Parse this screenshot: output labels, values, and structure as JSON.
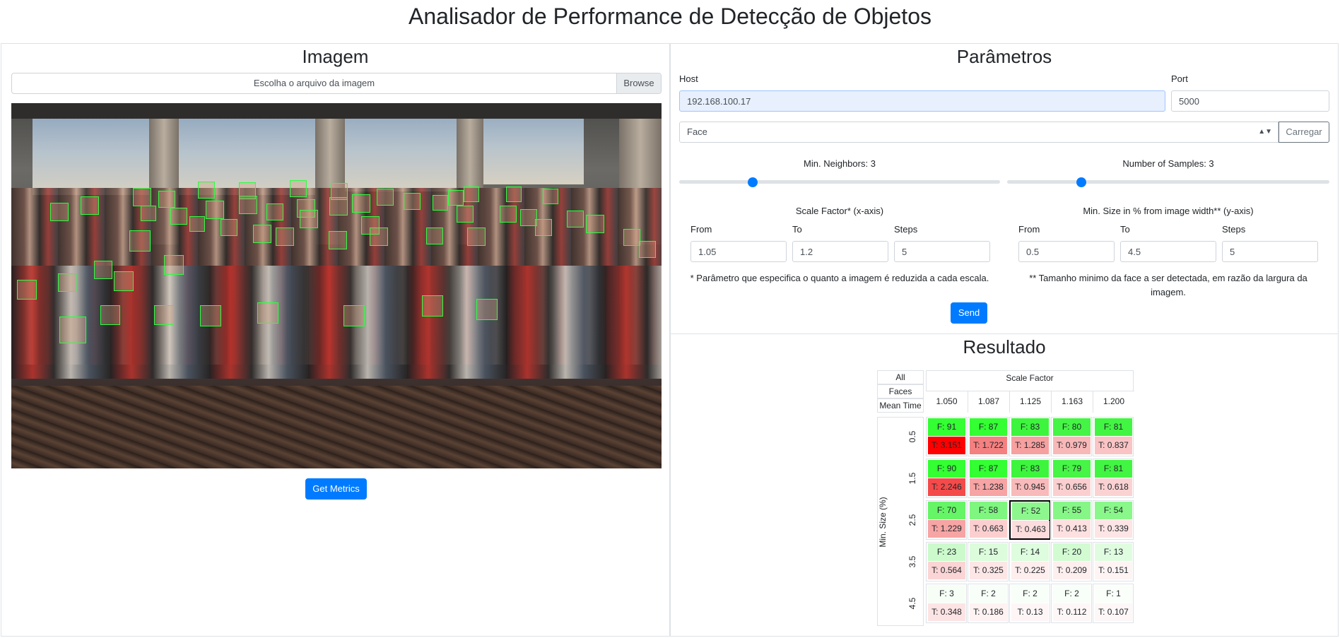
{
  "page_title": "Analisador de Performance de Detecção de Objetos",
  "image_panel": {
    "title": "Imagem",
    "file_placeholder": "Escolha o arquivo da imagem",
    "browse_label": "Browse",
    "get_metrics_label": "Get Metrics"
  },
  "params_panel": {
    "title": "Parâmetros",
    "host_label": "Host",
    "host_value": "192.168.100.17",
    "port_label": "Port",
    "port_value": "5000",
    "model_select": "Face",
    "load_label": "Carregar",
    "min_neighbors_label": "Min. Neighbors: 3",
    "min_neighbors_fraction": 0.23,
    "samples_label": "Number of Samples: 3",
    "samples_fraction": 0.23,
    "scale_title": "Scale Factor* (x-axis)",
    "size_title": "Min. Size in % from image width** (y-axis)",
    "from_label": "From",
    "to_label": "To",
    "steps_label": "Steps",
    "scale_from": "1.05",
    "scale_to": "1.2",
    "scale_steps": "5",
    "size_from": "0.5",
    "size_to": "4.5",
    "size_steps": "5",
    "scale_note": "* Parâmetro que especifica o quanto a imagem é reduzida a cada escala.",
    "size_note": "** Tamanho minimo da face a ser detectada, em razão da largura da imagem.",
    "send_label": "Send"
  },
  "result_panel": {
    "title": "Resultado",
    "legend": [
      "All",
      "Faces",
      "Mean Time"
    ],
    "x_axis_title": "Scale Factor",
    "y_axis_title": "Min. Size (%)",
    "columns": [
      "1.050",
      "1.087",
      "1.125",
      "1.163",
      "1.200"
    ],
    "rows": [
      {
        "label": "0.5",
        "cells": [
          {
            "f": "F: 91",
            "t": "T: 3.151",
            "fc": "#33ff33",
            "tc": "#ff0000"
          },
          {
            "f": "F: 87",
            "t": "T: 1.722",
            "fc": "#33ff33",
            "tc": "#f48080"
          },
          {
            "f": "F: 83",
            "t": "T: 1.285",
            "fc": "#3df53d",
            "tc": "#f6a0a0"
          },
          {
            "f": "F: 80",
            "t": "T: 0.979",
            "fc": "#45f545",
            "tc": "#f8b8b8"
          },
          {
            "f": "F: 81",
            "t": "T: 0.837",
            "fc": "#42f542",
            "tc": "#fac4c4"
          }
        ]
      },
      {
        "label": "1.5",
        "cells": [
          {
            "f": "F: 90",
            "t": "T: 2.246",
            "fc": "#33ff33",
            "tc": "#f54a4a"
          },
          {
            "f": "F: 87",
            "t": "T: 1.238",
            "fc": "#33ff33",
            "tc": "#f6a4a4"
          },
          {
            "f": "F: 83",
            "t": "T: 0.945",
            "fc": "#3df53d",
            "tc": "#f8baba"
          },
          {
            "f": "F: 79",
            "t": "T: 0.656",
            "fc": "#46f546",
            "tc": "#fbcfcf"
          },
          {
            "f": "F: 81",
            "t": "T: 0.618",
            "fc": "#42f542",
            "tc": "#fbd2d2"
          }
        ]
      },
      {
        "label": "2.5",
        "cells": [
          {
            "f": "F: 70",
            "t": "T: 1.229",
            "fc": "#66f566",
            "tc": "#f6a4a4"
          },
          {
            "f": "F: 58",
            "t": "T: 0.663",
            "fc": "#7ff67f",
            "tc": "#fbcfcf"
          },
          {
            "f": "F: 52",
            "t": "T: 0.463",
            "fc": "#8df78d",
            "tc": "#fcdcdc"
          },
          {
            "f": "F: 55",
            "t": "T: 0.413",
            "fc": "#86f786",
            "tc": "#fde0e0"
          },
          {
            "f": "F: 54",
            "t": "T: 0.339",
            "fc": "#89f789",
            "tc": "#fde5e5"
          }
        ]
      },
      {
        "label": "3.5",
        "cells": [
          {
            "f": "F: 23",
            "t": "T: 0.564",
            "fc": "#ccfacc",
            "tc": "#fbd5d5"
          },
          {
            "f": "F: 15",
            "t": "T: 0.325",
            "fc": "#dcfcdc",
            "tc": "#fde6e6"
          },
          {
            "f": "F: 14",
            "t": "T: 0.225",
            "fc": "#defcde",
            "tc": "#feeeee"
          },
          {
            "f": "F: 20",
            "t": "T: 0.209",
            "fc": "#d2fbd2",
            "tc": "#feefef"
          },
          {
            "f": "F: 13",
            "t": "T: 0.151",
            "fc": "#e0fce0",
            "tc": "#fef4f4"
          }
        ]
      },
      {
        "label": "4.5",
        "cells": [
          {
            "f": "F: 3",
            "t": "T: 0.348",
            "fc": "#f6fef6",
            "tc": "#fde4e4"
          },
          {
            "f": "F: 2",
            "t": "T: 0.186",
            "fc": "#f8fef8",
            "tc": "#fef2f2"
          },
          {
            "f": "F: 2",
            "t": "T: 0.13",
            "fc": "#f8fef8",
            "tc": "#fef6f6"
          },
          {
            "f": "F: 2",
            "t": "T: 0.112",
            "fc": "#f8fef8",
            "tc": "#fef7f7"
          },
          {
            "f": "F: 1",
            "t": "T: 0.107",
            "fc": "#fafffa",
            "tc": "#fef7f7"
          }
        ]
      }
    ],
    "selected_cell": [
      2,
      2
    ]
  }
}
